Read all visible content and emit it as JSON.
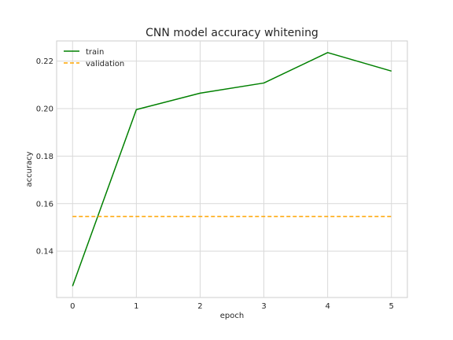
{
  "chart_data": {
    "type": "line",
    "title": "CNN model accuracy whitening",
    "xlabel": "epoch",
    "ylabel": "accuracy",
    "x": [
      0,
      1,
      2,
      3,
      4,
      5
    ],
    "xlim": [
      -0.25,
      5.25
    ],
    "ylim": [
      0.1205,
      0.2285
    ],
    "xticks": [
      0,
      1,
      2,
      3,
      4,
      5
    ],
    "yticks": [
      0.14,
      0.16,
      0.18,
      0.2,
      0.22
    ],
    "ytick_labels": [
      "0.14",
      "0.16",
      "0.18",
      "0.20",
      "0.22"
    ],
    "grid": true,
    "legend_position": "top-left",
    "series": [
      {
        "name": "train",
        "values": [
          0.1253,
          0.1996,
          0.2065,
          0.2108,
          0.2236,
          0.2158
        ],
        "color": "#008000",
        "style": "solid"
      },
      {
        "name": "validation",
        "values": [
          0.1546,
          0.1546,
          0.1546,
          0.1546,
          0.1546,
          0.1546
        ],
        "color": "#ffa500",
        "style": "dashed"
      }
    ]
  }
}
